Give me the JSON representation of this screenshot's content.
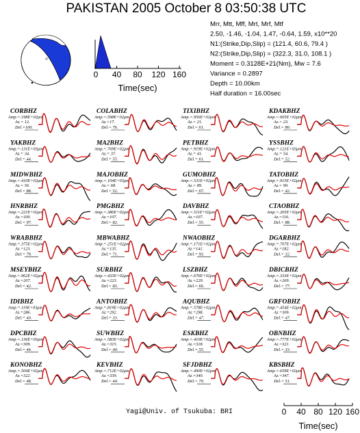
{
  "header": {
    "title": "PAKISTAN 2005 October 8 03:50:38 UTC",
    "params": [
      "Mrr,  Mtt,  Mff,  Mrt,  Mrf,  Mtf",
      "2.50, -1.46, -1.04, 1.47, -0.64, 1.59, x10**20",
      "N1:(Strike,Dip,Slip) = (121.4, 60.6,  79.4   )",
      "N2:(Strike,Dip,Slip) = (322.3, 31.0, 108.1   )",
      "Moment = 0.3128E+21(Nm), Mw = 7.6",
      "Variance =    0.2897",
      "Depth =    10.00km",
      "Half duration =    16.00sec"
    ]
  },
  "stf_axis": {
    "ticks": [
      0,
      40,
      80,
      120,
      160
    ],
    "label": "Time(sec)"
  },
  "stations": [
    {
      "name": "CORBHZ",
      "amp": "Amp.=.198E+02μm",
      "az": "Az.= 12.",
      "del": "Del.=100."
    },
    {
      "name": "COLABHZ",
      "amp": "Amp.=.598E+02μm",
      "az": "Az.=17.",
      "del": "Del.= 76."
    },
    {
      "name": "TIXIBHZ",
      "amp": "Amp.=.956E+02μm",
      "az": "Az.= 21.",
      "del": "Del.= 61."
    },
    {
      "name": "KDAKBHZ",
      "amp": "Amp.=.665E+02μm",
      "az": "Az.= 23.",
      "del": "Del.= 80."
    },
    {
      "name": "YAKBHZ",
      "amp": "Amp.=.131E+03μm",
      "az": "Az.= 34.",
      "del": "Del.= 44."
    },
    {
      "name": "MA2BHZ",
      "amp": "Amp.=.769E+02μm",
      "az": "Az.= 37.",
      "del": "Del.= 55."
    },
    {
      "name": "PETBHZ",
      "amp": "Amp.=.919E+02μm",
      "az": "Az.= 41.",
      "del": "Del.= 61."
    },
    {
      "name": "YSSBHZ",
      "amp": "Amp.=.121E+03μm",
      "az": "Az.= 54.",
      "del": "Del.= 52."
    },
    {
      "name": "MIDWBHZ",
      "amp": "Amp.=.410E+02μm",
      "az": "Az.= 56.",
      "del": "Del.= 88."
    },
    {
      "name": "MAJOBHZ",
      "amp": "Amp.=.104E+03μm",
      "az": "Az.= 68.",
      "del": "Del.= 52."
    },
    {
      "name": "GUMOBHZ",
      "amp": "Amp.=.531E+02μm",
      "az": "Az.= 89.",
      "del": "Del.= 67."
    },
    {
      "name": "TATOBHZ",
      "amp": "Amp.=.915E+02μm",
      "az": "Az.= 90.",
      "del": "Del.= 42."
    },
    {
      "name": "HNRBHZ",
      "amp": "Amp.=.221E+02μm",
      "az": "Az.=100.",
      "del": "Del.= 97."
    },
    {
      "name": "PMGBHZ",
      "amp": "Amp.=.386E+02μm",
      "az": "Az.=107.",
      "del": "Del.= 82."
    },
    {
      "name": "DAVBHZ",
      "amp": "Amp.=.511E+02μm",
      "az": "Az.=107.",
      "del": "Del.= 55."
    },
    {
      "name": "CTAOBHZ",
      "amp": "Amp.=.265E+02μm",
      "az": "Az.=116.",
      "del": "Del.= 88."
    },
    {
      "name": "WRABBHZ",
      "amp": "Amp.=.375E+02μm",
      "az": "Az.=123.",
      "del": "Del.= 79."
    },
    {
      "name": "MBWABHZ",
      "amp": "Amp.=.251E+02μm",
      "az": "Az.=135.",
      "del": "Del.= 71."
    },
    {
      "name": "NWAOBHZ",
      "amp": "Amp.=.171E+02μm",
      "az": "Az.=141.",
      "del": "Del.= 93."
    },
    {
      "name": "DGARBHZ",
      "amp": "Amp.=.767E+02μm",
      "az": "Az.=182.",
      "del": "Del.= 32."
    },
    {
      "name": "MSEYBHZ",
      "amp": "Amp.=.962E+02μm",
      "az": "Az.=207.",
      "del": "Del.= 42."
    },
    {
      "name": "SURBHZ",
      "amp": "Amp.=.433E+02μm",
      "az": "Az.=223.",
      "del": "Del.= 83."
    },
    {
      "name": "LSZBHZ",
      "amp": "Amp.=.676E+02μm",
      "az": "Az.=229.",
      "del": "Del.= 66."
    },
    {
      "name": "DBICBHZ",
      "amp": "Amp.=.333E+02μm",
      "az": "Az.=269.",
      "del": "Del.= 77."
    },
    {
      "name": "IDIBHZ",
      "amp": "Amp.=.119E+03μm",
      "az": "Az.=286.",
      "del": "Del.= 40."
    },
    {
      "name": "ANTOBHZ",
      "amp": "Amp.=.819E+02μm",
      "az": "Az.=292.",
      "del": "Del.= 33."
    },
    {
      "name": "AQUBHZ",
      "amp": "Amp.=.578E+02μm",
      "az": "Az.=298.",
      "del": "Del.= 47."
    },
    {
      "name": "GRFOBHZ",
      "amp": "Amp.=.454E+02μm",
      "az": "Az.=309.",
      "del": "Del.= 47."
    },
    {
      "name": "DPCBHZ",
      "amp": "Amp.=.136E+03μm",
      "az": "Az.=309.",
      "del": "Del.= 44."
    },
    {
      "name": "SUWBHZ",
      "amp": "Amp.=.583E+02μm",
      "az": "Az.=315.",
      "del": "Del.= 40."
    },
    {
      "name": "ESKBHZ",
      "amp": "Amp.=.410E+02μm",
      "az": "Az.=318.",
      "del": "Del.= 55."
    },
    {
      "name": "OBNBHZ",
      "amp": "Amp.=.777E+02μm",
      "az": "Az.=321.",
      "del": "Del.= 33."
    },
    {
      "name": "KONOBHZ",
      "amp": "Amp.=.504E+02μm",
      "az": "Az.=322.",
      "del": "Del.= 48."
    },
    {
      "name": "KEVBHZ",
      "amp": "Amp.=.712E+02μm",
      "az": "Az.=339.",
      "del": "Del.= 44."
    },
    {
      "name": "SFJDBHZ",
      "amp": "Amp.=.490E+02μm",
      "az": "Az.=340.",
      "del": "Del.= 70."
    },
    {
      "name": "KBSBHZ",
      "amp": "Amp.=.659E+02μm",
      "az": "Az.=347.",
      "del": "Del.= 51."
    }
  ],
  "footer": "Yagi@Univ. of Tsukuba: BRI"
}
